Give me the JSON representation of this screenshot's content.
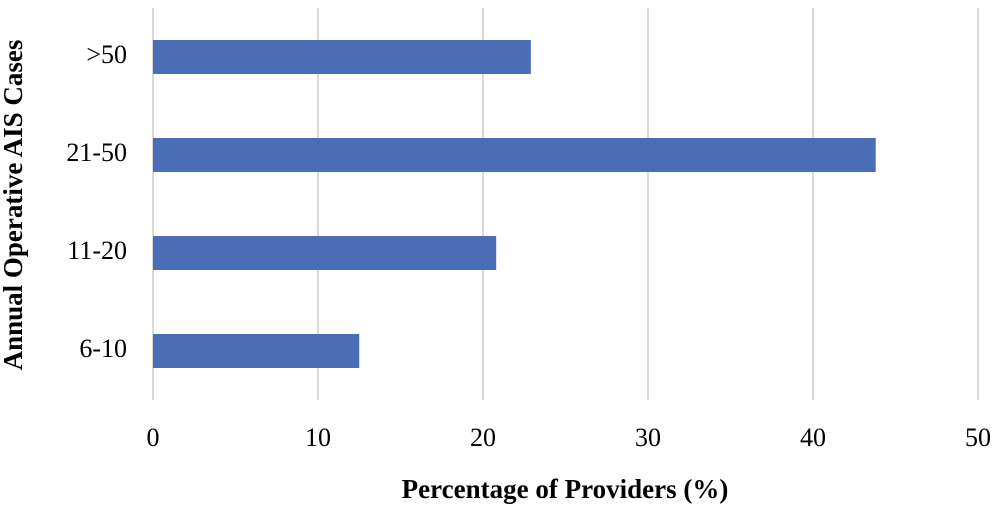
{
  "chart_data": {
    "type": "bar",
    "orientation": "horizontal",
    "x_label": "Percentage of Providers (%)",
    "y_label": "Annual Operative AIS Cases",
    "categories": [
      "6-10",
      "11-20",
      "21-50",
      ">50"
    ],
    "values": [
      12.5,
      20.8,
      43.8,
      22.9
    ],
    "color": "#4a6db5",
    "xlim": [
      0,
      50
    ],
    "xticks": [
      0,
      10,
      20,
      30,
      40,
      50
    ],
    "grid": true
  }
}
